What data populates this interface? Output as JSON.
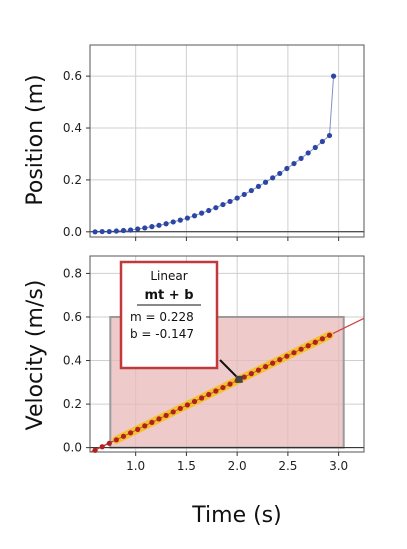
{
  "chart_data": [
    {
      "type": "scatter",
      "ylabel": "Position (m)",
      "xlim": [
        0.55,
        3.25
      ],
      "ylim": [
        -0.02,
        0.72
      ],
      "yticks": [
        0.0,
        0.2,
        0.4,
        0.6
      ],
      "ytick_labels": [
        "0.0",
        "0.2",
        "0.4",
        "0.6"
      ],
      "xticks": [
        1.0,
        1.5,
        2.0,
        2.5,
        3.0
      ],
      "grid": true,
      "marker_color": "#2c46a3",
      "series": [
        {
          "x": [
            0.6,
            0.67,
            0.74,
            0.81,
            0.88,
            0.95,
            1.02,
            1.09,
            1.16,
            1.23,
            1.3,
            1.37,
            1.44,
            1.51,
            1.58,
            1.65,
            1.72,
            1.79,
            1.86,
            1.93,
            2.0,
            2.07,
            2.14,
            2.21,
            2.28,
            2.35,
            2.42,
            2.49,
            2.56,
            2.63,
            2.7,
            2.77,
            2.84,
            2.91,
            2.95
          ],
          "y": [
            0.0,
            0.001,
            0.001,
            0.003,
            0.005,
            0.007,
            0.011,
            0.015,
            0.02,
            0.025,
            0.031,
            0.038,
            0.045,
            0.053,
            0.062,
            0.072,
            0.082,
            0.093,
            0.105,
            0.117,
            0.13,
            0.144,
            0.159,
            0.175,
            0.191,
            0.208,
            0.225,
            0.244,
            0.263,
            0.283,
            0.304,
            0.325,
            0.348,
            0.371,
            0.6
          ]
        }
      ]
    },
    {
      "type": "scatter",
      "xlabel": "Time (s)",
      "ylabel": "Velocity (m/s)",
      "xlim": [
        0.55,
        3.25
      ],
      "ylim": [
        -0.02,
        0.88
      ],
      "yticks": [
        0.0,
        0.2,
        0.4,
        0.6,
        0.8
      ],
      "ytick_labels": [
        "0.0",
        "0.2",
        "0.4",
        "0.6",
        "0.8"
      ],
      "xticks": [
        1.0,
        1.5,
        2.0,
        2.5,
        3.0
      ],
      "xtick_labels": [
        "1.0",
        "1.5",
        "2.0",
        "2.5",
        "3.0"
      ],
      "grid": true,
      "marker_color": "#b02020",
      "highlight_color": "#f2c230",
      "selection": {
        "x": [
          0.75,
          3.05
        ],
        "y": [
          0.0,
          0.6
        ],
        "color": "#e8b8b8"
      },
      "fit": {
        "title": "Linear",
        "equation": "mt + b",
        "m_label": "m = 0.228",
        "b_label": "b  = -0.147",
        "m": 0.228,
        "b": -0.147,
        "marker_x": 2.02,
        "line_color": "#d04040",
        "box_border": "#c0393b"
      },
      "series": [
        {
          "x": [
            0.6,
            0.67,
            0.74,
            0.81,
            0.88,
            0.95,
            1.02,
            1.09,
            1.16,
            1.23,
            1.3,
            1.37,
            1.44,
            1.51,
            1.58,
            1.65,
            1.72,
            1.79,
            1.86,
            1.93,
            2.0,
            2.07,
            2.14,
            2.21,
            2.28,
            2.35,
            2.42,
            2.49,
            2.56,
            2.63,
            2.7,
            2.77,
            2.84,
            2.91
          ],
          "y": [
            -0.012,
            0.004,
            0.02,
            0.036,
            0.052,
            0.068,
            0.084,
            0.1,
            0.116,
            0.132,
            0.148,
            0.164,
            0.18,
            0.196,
            0.212,
            0.228,
            0.244,
            0.26,
            0.276,
            0.292,
            0.308,
            0.324,
            0.34,
            0.356,
            0.372,
            0.388,
            0.404,
            0.42,
            0.436,
            0.452,
            0.468,
            0.484,
            0.5,
            0.516
          ]
        }
      ]
    }
  ]
}
